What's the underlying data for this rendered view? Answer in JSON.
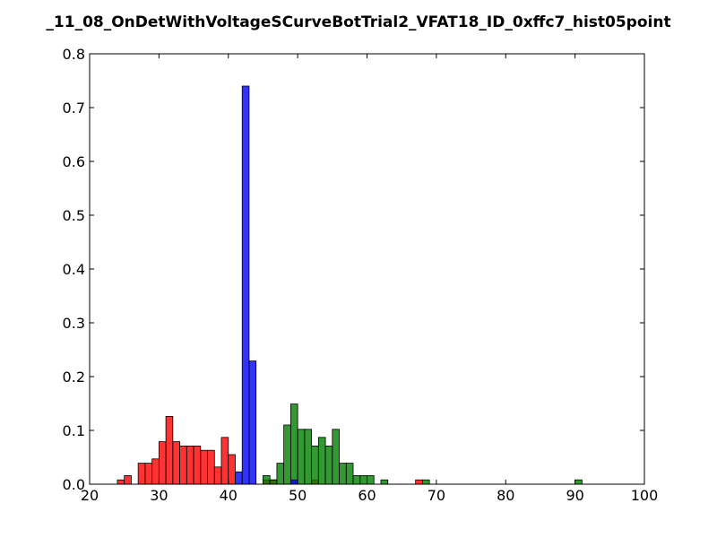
{
  "chart_data": {
    "type": "bar",
    "title": "_11_08_OnDetWithVoltageSCurveBotTrial2_VFAT18_ID_0xffc7_hist05point",
    "xlabel": "",
    "ylabel": "",
    "xlim": [
      20,
      100
    ],
    "ylim": [
      0,
      0.8
    ],
    "xticks": [
      20,
      30,
      40,
      50,
      60,
      70,
      80,
      90,
      100
    ],
    "yticks": [
      0.0,
      0.1,
      0.2,
      0.3,
      0.4,
      0.5,
      0.6,
      0.7,
      0.8
    ],
    "ytick_labels": [
      "0.0",
      "0.1",
      "0.2",
      "0.3",
      "0.4",
      "0.5",
      "0.6",
      "0.7",
      "0.8"
    ],
    "grid": false,
    "bin_width": 1,
    "series": [
      {
        "color": "#ff0000",
        "bars": [
          {
            "x": 24,
            "y": 0.008
          },
          {
            "x": 25,
            "y": 0.016
          },
          {
            "x": 27,
            "y": 0.039
          },
          {
            "x": 28,
            "y": 0.039
          },
          {
            "x": 29,
            "y": 0.047
          },
          {
            "x": 30,
            "y": 0.079
          },
          {
            "x": 31,
            "y": 0.126
          },
          {
            "x": 32,
            "y": 0.079
          },
          {
            "x": 33,
            "y": 0.071
          },
          {
            "x": 34,
            "y": 0.071
          },
          {
            "x": 35,
            "y": 0.071
          },
          {
            "x": 36,
            "y": 0.063
          },
          {
            "x": 37,
            "y": 0.063
          },
          {
            "x": 38,
            "y": 0.032
          },
          {
            "x": 39,
            "y": 0.087
          },
          {
            "x": 40,
            "y": 0.055
          },
          {
            "x": 45,
            "y": 0.008
          },
          {
            "x": 46,
            "y": 0.008
          },
          {
            "x": 52,
            "y": 0.008
          },
          {
            "x": 67,
            "y": 0.008
          }
        ]
      },
      {
        "color": "#008000",
        "bars": [
          {
            "x": 45,
            "y": 0.016
          },
          {
            "x": 46,
            "y": 0.008
          },
          {
            "x": 47,
            "y": 0.039
          },
          {
            "x": 48,
            "y": 0.11
          },
          {
            "x": 49,
            "y": 0.149
          },
          {
            "x": 50,
            "y": 0.102
          },
          {
            "x": 51,
            "y": 0.102
          },
          {
            "x": 52,
            "y": 0.071
          },
          {
            "x": 53,
            "y": 0.087
          },
          {
            "x": 54,
            "y": 0.071
          },
          {
            "x": 55,
            "y": 0.102
          },
          {
            "x": 56,
            "y": 0.039
          },
          {
            "x": 57,
            "y": 0.039
          },
          {
            "x": 58,
            "y": 0.016
          },
          {
            "x": 59,
            "y": 0.016
          },
          {
            "x": 60,
            "y": 0.016
          },
          {
            "x": 62,
            "y": 0.008
          },
          {
            "x": 68,
            "y": 0.008
          },
          {
            "x": 90,
            "y": 0.008
          }
        ]
      },
      {
        "color": "#0000ff",
        "bars": [
          {
            "x": 41,
            "y": 0.023
          },
          {
            "x": 42,
            "y": 0.74
          },
          {
            "x": 43,
            "y": 0.229
          },
          {
            "x": 49,
            "y": 0.008
          }
        ]
      }
    ]
  }
}
